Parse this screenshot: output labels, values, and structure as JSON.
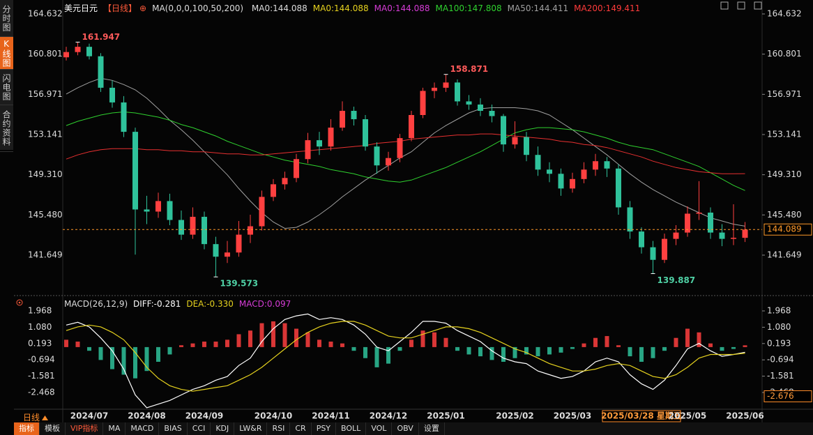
{
  "sidebar": {
    "tabs": [
      "分时图",
      "K线图",
      "闪电图",
      "合约资料"
    ]
  },
  "header": {
    "symbol": "美元日元",
    "period": "【日线】",
    "ma_params": "MA(0,0,0,100,50,200)",
    "legend": [
      {
        "text": "MA0:144.088",
        "color": "#dddddd"
      },
      {
        "text": "MA0:144.088",
        "color": "#e6d21e"
      },
      {
        "text": "MA0:144.088",
        "color": "#d63cd6"
      },
      {
        "text": "MA100:147.808",
        "color": "#2fd12f"
      },
      {
        "text": "MA50:144.411",
        "color": "#a0a0a0"
      },
      {
        "text": "MA200:149.411",
        "color": "#ff3b3b"
      }
    ]
  },
  "chart_data": [
    {
      "type": "candlestick",
      "up_color": "#ff4040",
      "down_color": "#2fc29b",
      "high_label_color": "#ff5a5a",
      "low_label_color": "#4fd1a5",
      "categories": [
        null,
        null,
        "2024/07",
        null,
        null,
        null,
        null,
        "2024/08",
        null,
        null,
        null,
        null,
        "2024/09",
        null,
        null,
        null,
        null,
        null,
        "2024/10",
        null,
        null,
        null,
        null,
        "2024/11",
        null,
        null,
        null,
        null,
        "2024/12",
        null,
        null,
        null,
        null,
        "2025/01",
        null,
        null,
        null,
        null,
        null,
        "2025/02",
        null,
        null,
        null,
        null,
        "2025/03",
        null,
        null,
        null,
        null,
        null,
        "2025/03/28 星期五",
        null,
        null,
        null,
        "2025/05",
        null,
        null,
        null,
        null,
        "2025/06"
      ],
      "open": [
        160.5,
        161.0,
        161.5,
        160.6,
        157.6,
        156.2,
        153.4,
        146.0,
        145.8,
        146.8,
        145.0,
        143.6,
        145.3,
        142.7,
        141.5,
        141.9,
        143.6,
        144.4,
        147.2,
        148.4,
        149.0,
        150.8,
        152.6,
        152.0,
        153.8,
        155.4,
        154.6,
        152.0,
        150.2,
        150.9,
        152.8,
        155.0,
        157.3,
        157.6,
        158.1,
        156.3,
        156.0,
        155.4,
        154.9,
        152.2,
        152.9,
        151.2,
        149.8,
        149.4,
        148.0,
        148.9,
        149.8,
        150.6,
        149.9,
        146.2,
        143.9,
        142.4,
        141.2,
        143.2,
        143.8,
        145.6,
        145.7,
        143.8,
        143.2,
        143.3
      ],
      "high": [
        161.5,
        161.947,
        161.8,
        160.9,
        158.3,
        156.8,
        153.8,
        147.3,
        147.6,
        147.5,
        145.9,
        146.2,
        145.8,
        143.4,
        143.0,
        144.9,
        145.5,
        147.8,
        148.9,
        149.6,
        151.3,
        153.3,
        153.4,
        154.6,
        156.3,
        155.8,
        155.0,
        152.4,
        151.5,
        153.2,
        155.4,
        157.6,
        158.1,
        158.871,
        158.4,
        156.9,
        156.6,
        156.0,
        155.1,
        154.4,
        153.4,
        152.0,
        150.5,
        149.9,
        149.5,
        150.5,
        151.3,
        151.0,
        150.3,
        146.8,
        144.3,
        143.0,
        143.7,
        144.5,
        146.3,
        148.7,
        146.2,
        144.6,
        146.5,
        144.8
      ],
      "low": [
        160.2,
        160.7,
        160.3,
        157.2,
        155.7,
        152.9,
        141.7,
        144.6,
        145.2,
        144.5,
        143.1,
        143.2,
        142.2,
        139.573,
        140.9,
        141.5,
        142.8,
        144.0,
        146.8,
        147.9,
        148.6,
        150.4,
        151.2,
        151.6,
        153.5,
        154.0,
        151.6,
        149.4,
        149.7,
        150.5,
        152.5,
        154.7,
        156.6,
        157.2,
        155.9,
        155.5,
        154.9,
        154.3,
        151.5,
        151.8,
        150.6,
        149.2,
        148.6,
        147.3,
        147.6,
        148.5,
        149.2,
        149.1,
        145.5,
        143.2,
        141.8,
        139.887,
        140.9,
        142.6,
        143.4,
        145.0,
        143.2,
        142.5,
        142.6,
        142.9
      ],
      "close": [
        161.0,
        161.5,
        160.6,
        157.6,
        156.2,
        153.4,
        146.0,
        145.8,
        146.8,
        145.0,
        143.6,
        145.3,
        142.7,
        141.5,
        141.9,
        143.6,
        144.4,
        147.2,
        148.4,
        149.0,
        150.8,
        152.6,
        152.0,
        153.8,
        155.4,
        154.6,
        152.0,
        150.2,
        150.9,
        152.8,
        155.0,
        157.3,
        157.6,
        158.1,
        156.3,
        156.0,
        155.4,
        154.9,
        152.2,
        152.9,
        151.2,
        149.8,
        149.4,
        148.0,
        148.9,
        149.8,
        150.6,
        149.9,
        146.2,
        143.9,
        142.4,
        141.2,
        143.2,
        143.8,
        145.6,
        145.7,
        143.8,
        143.2,
        143.3,
        144.089
      ],
      "series": [
        {
          "color": "#a0a0a0",
          "values": [
            157.0,
            157.6,
            158.1,
            158.5,
            158.3,
            157.9,
            157.4,
            156.6,
            155.6,
            154.5,
            153.6,
            152.6,
            151.5,
            150.4,
            149.3,
            148.0,
            146.8,
            145.7,
            144.8,
            144.2,
            144.3,
            144.8,
            145.5,
            146.3,
            147.2,
            148.0,
            148.8,
            149.5,
            150.2,
            150.9,
            151.5,
            152.4,
            153.3,
            154.0,
            154.6,
            155.2,
            155.6,
            155.7,
            155.7,
            155.7,
            155.6,
            155.4,
            155.0,
            154.3,
            153.6,
            152.8,
            152.0,
            151.2,
            150.3,
            149.4,
            148.6,
            147.9,
            147.3,
            146.7,
            146.2,
            145.7,
            145.2,
            144.9,
            144.6,
            144.411
          ]
        },
        {
          "color": "#2fd12f",
          "values": [
            154.0,
            154.4,
            154.7,
            155.0,
            155.2,
            155.3,
            155.2,
            155.0,
            154.8,
            154.5,
            154.1,
            153.8,
            153.4,
            153.0,
            152.5,
            152.1,
            151.7,
            151.3,
            151.0,
            150.7,
            150.5,
            150.3,
            150.1,
            149.8,
            149.6,
            149.4,
            149.1,
            148.9,
            148.7,
            148.6,
            148.8,
            149.2,
            149.6,
            150.0,
            150.5,
            151.0,
            151.5,
            152.1,
            152.7,
            153.3,
            153.6,
            153.8,
            153.8,
            153.7,
            153.6,
            153.4,
            153.1,
            152.8,
            152.4,
            152.1,
            151.9,
            151.7,
            151.3,
            150.9,
            150.5,
            150.1,
            149.5,
            148.9,
            148.3,
            147.808
          ]
        },
        {
          "color": "#e83030",
          "values": [
            150.8,
            151.2,
            151.5,
            151.7,
            151.8,
            151.8,
            151.8,
            151.7,
            151.7,
            151.6,
            151.6,
            151.5,
            151.5,
            151.4,
            151.3,
            151.3,
            151.2,
            151.2,
            151.3,
            151.4,
            151.5,
            151.6,
            151.7,
            151.8,
            151.9,
            152.0,
            152.1,
            152.3,
            152.4,
            152.5,
            152.7,
            152.8,
            152.9,
            153.0,
            153.1,
            153.1,
            153.2,
            153.2,
            153.1,
            153.0,
            152.9,
            152.8,
            152.7,
            152.5,
            152.4,
            152.2,
            152.1,
            151.9,
            151.6,
            151.3,
            151.0,
            150.6,
            150.3,
            150.0,
            149.8,
            149.6,
            149.5,
            149.4,
            149.4,
            149.411
          ]
        }
      ],
      "last": 144.089,
      "last_color": "#ff9a2a",
      "ylim": [
        138.06,
        165.43
      ],
      "yticks": [
        164.632,
        160.801,
        156.971,
        153.141,
        {
          "value": 149.31,
          "label": "149.310"
        },
        {
          "value": 145.48,
          "label": "145.480"
        },
        141.649
      ]
    },
    {
      "type": "macd",
      "title": "MACD(26,12,9)",
      "up_color": "#ff4040",
      "down_color": "#2fc29b",
      "series": [
        {
          "label": "DIFF:-0.281",
          "color": "#ffffff",
          "kind": "line",
          "values": [
            1.2,
            1.35,
            1.1,
            0.5,
            -0.2,
            -1.2,
            -2.6,
            -3.3,
            -3.1,
            -2.9,
            -2.6,
            -2.3,
            -2.1,
            -1.8,
            -1.6,
            -1.0,
            -0.6,
            0.3,
            1.0,
            1.5,
            1.7,
            1.8,
            1.5,
            1.6,
            1.5,
            1.2,
            0.7,
            0.0,
            -0.2,
            0.3,
            0.8,
            1.4,
            1.4,
            1.3,
            0.9,
            0.6,
            0.3,
            -0.2,
            -0.6,
            -0.8,
            -0.9,
            -1.3,
            -1.5,
            -1.7,
            -1.6,
            -1.3,
            -0.8,
            -0.6,
            -0.8,
            -1.5,
            -2.0,
            -2.3,
            -1.8,
            -1.0,
            -0.1,
            0.2,
            -0.2,
            -0.5,
            -0.4,
            -0.281
          ]
        },
        {
          "label": "DEA:-0.330",
          "color": "#e6d21e",
          "kind": "line",
          "values": [
            0.9,
            1.1,
            1.2,
            1.1,
            0.8,
            0.4,
            -0.3,
            -1.1,
            -1.7,
            -2.1,
            -2.3,
            -2.4,
            -2.3,
            -2.2,
            -2.1,
            -1.8,
            -1.5,
            -1.1,
            -0.6,
            -0.1,
            0.4,
            0.8,
            1.1,
            1.3,
            1.4,
            1.4,
            1.2,
            0.9,
            0.6,
            0.5,
            0.5,
            0.7,
            0.9,
            1.1,
            1.1,
            1.0,
            0.8,
            0.5,
            0.2,
            -0.1,
            -0.3,
            -0.6,
            -0.9,
            -1.1,
            -1.3,
            -1.3,
            -1.2,
            -1.0,
            -0.9,
            -1.0,
            -1.3,
            -1.6,
            -1.7,
            -1.5,
            -1.1,
            -0.6,
            -0.4,
            -0.4,
            -0.4,
            -0.33
          ]
        },
        {
          "label": "MACD:0.097",
          "color": "#d63cd6",
          "kind": "bar",
          "values": [
            0.4,
            0.3,
            -0.2,
            -0.7,
            -1.2,
            -1.5,
            -1.7,
            -1.3,
            -0.8,
            -0.4,
            0.1,
            0.2,
            0.3,
            0.3,
            0.4,
            0.7,
            0.9,
            1.3,
            1.4,
            1.3,
            1.0,
            0.8,
            0.4,
            0.3,
            0.2,
            -0.2,
            -0.6,
            -1.1,
            -0.9,
            -0.2,
            0.4,
            0.9,
            0.8,
            0.5,
            -0.2,
            -0.4,
            -0.5,
            -0.7,
            -0.8,
            -0.6,
            -0.4,
            -0.5,
            -0.4,
            -0.3,
            -0.1,
            0.2,
            0.5,
            0.6,
            0.1,
            -0.5,
            -0.8,
            -0.6,
            -0.2,
            0.5,
            1.0,
            0.8,
            0.2,
            -0.2,
            -0.1,
            0.097
          ]
        }
      ],
      "crosshair_value": -2.676,
      "ylim": [
        -3.492,
        2.347
      ],
      "yticks": [
        1.968,
        {
          "value": 1.08,
          "label": "1.080"
        },
        0.193,
        -0.694,
        -1.581,
        -2.468
      ]
    }
  ],
  "toolbar": {
    "period": "日线",
    "tabs": [
      "指标",
      "模板",
      "VIP指标",
      "MA",
      "MACD",
      "BIAS",
      "CCI",
      "KDJ",
      "LW&R",
      "RSI",
      "CR",
      "PSY",
      "BOLL",
      "VOL",
      "OBV",
      "设置"
    ]
  }
}
